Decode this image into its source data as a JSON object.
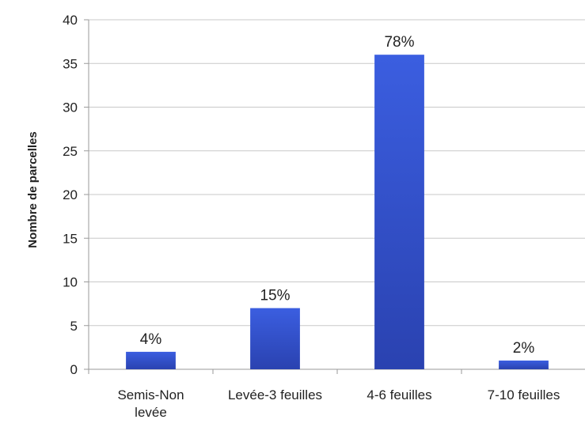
{
  "chart_data": {
    "type": "bar",
    "title": "",
    "xlabel": "",
    "ylabel": "Nombre de parcelles",
    "ylim": [
      0,
      40
    ],
    "yticks": [
      0,
      5,
      10,
      15,
      20,
      25,
      30,
      35,
      40
    ],
    "grid": true,
    "legend": "none",
    "categories": [
      "Semis-Non levée",
      "Levée-3 feuilles",
      "4-6 feuilles",
      "7-10 feuilles"
    ],
    "category_lines": [
      [
        "Semis-Non",
        "levée"
      ],
      [
        "Levée-3 feuilles"
      ],
      [
        "4-6 feuilles"
      ],
      [
        "7-10 feuilles"
      ]
    ],
    "values": [
      2,
      7,
      36,
      1
    ],
    "data_labels": [
      "4%",
      "15%",
      "78%",
      "2%"
    ],
    "colors": {
      "bar_top": "#3b5ee0",
      "bar_bottom": "#2a42b0",
      "grid": "#c8c8c8",
      "axis": "#9a9a9a"
    }
  }
}
